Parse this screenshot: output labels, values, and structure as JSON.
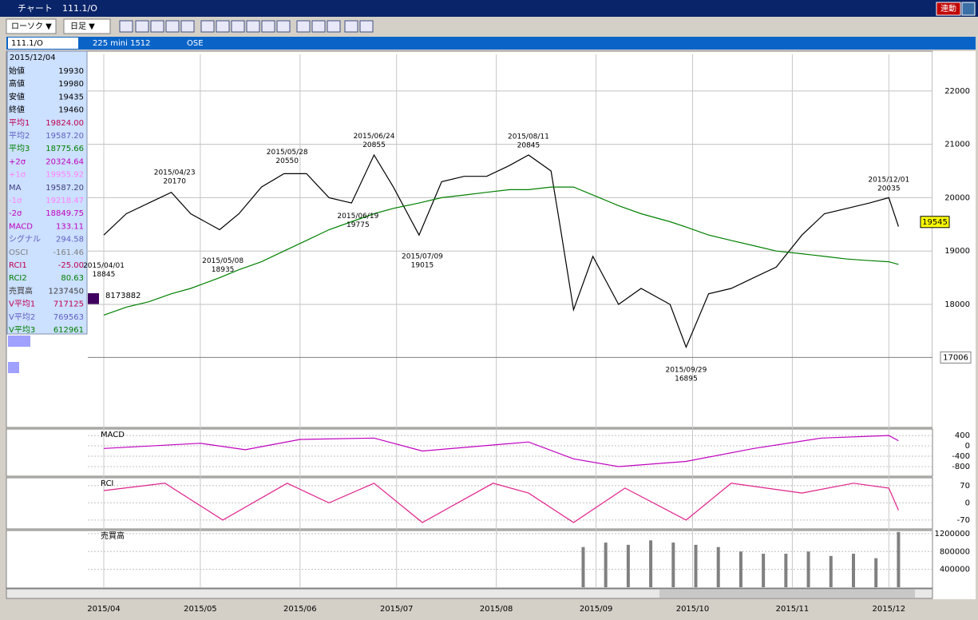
{
  "window": {
    "title": "チャート",
    "symbol": "111.1/O",
    "link_button": "連動"
  },
  "toolbar": {
    "chart_kind": "ローソク ▼",
    "period": "日足 ▼"
  },
  "info_bar": {
    "code": "111.1/O",
    "name": "225 mini 1512",
    "exchange": "OSE"
  },
  "info_panel": {
    "date": "2015/12/04",
    "rows": [
      {
        "label": "始値",
        "value": "19930",
        "color": "#000000"
      },
      {
        "label": "高値",
        "value": "19980",
        "color": "#000000"
      },
      {
        "label": "安値",
        "value": "19435",
        "color": "#000000"
      },
      {
        "label": "終値",
        "value": "19460",
        "color": "#000000"
      },
      {
        "label": "平均1",
        "value": "19824.00",
        "color": "#c00050"
      },
      {
        "label": "平均2",
        "value": "19587.20",
        "color": "#6060c0"
      },
      {
        "label": "平均3",
        "value": "18775.66",
        "color": "#008000"
      },
      {
        "label": "+2σ",
        "value": "20324.64",
        "color": "#c000c0"
      },
      {
        "label": "+1σ",
        "value": "19955.92",
        "color": "#ff80ff"
      },
      {
        "label": "MA",
        "value": "19587.20",
        "color": "#404080"
      },
      {
        "label": "-1σ",
        "value": "19218.47",
        "color": "#ff80ff"
      },
      {
        "label": "-2σ",
        "value": "18849.75",
        "color": "#c000c0"
      },
      {
        "label": "MACD",
        "value": "133.11",
        "color": "#c000c0"
      },
      {
        "label": "シグナル",
        "value": "294.58",
        "color": "#6060c0"
      },
      {
        "label": "OSCI",
        "value": "-161.46",
        "color": "#808080"
      },
      {
        "label": "RCI1",
        "value": "-25.00",
        "color": "#c00050"
      },
      {
        "label": "RCI2",
        "value": "80.63",
        "color": "#008000"
      },
      {
        "label": "売買高",
        "value": "1237450",
        "color": "#404040"
      },
      {
        "label": "V平均1",
        "value": "717125",
        "color": "#c00050"
      },
      {
        "label": "V平均2",
        "value": "769563",
        "color": "#6060c0"
      },
      {
        "label": "V平均3",
        "value": "612961",
        "color": "#008000"
      }
    ]
  },
  "chart_data": [
    {
      "type": "line",
      "ylim": [
        15695,
        22686
      ],
      "yticks": [
        18000,
        19000,
        20000,
        21000,
        22000
      ],
      "xticks": [
        "2015/04",
        "2015/05",
        "2015/06",
        "2015/07",
        "2015/08",
        "2015/09",
        "2015/10",
        "2015/11",
        "2015/12"
      ],
      "x": [
        "2015/04/01",
        "2015/04/08",
        "2015/04/15",
        "2015/04/22",
        "2015/04/28",
        "2015/05/07",
        "2015/05/13",
        "2015/05/20",
        "2015/05/27",
        "2015/06/03",
        "2015/06/10",
        "2015/06/17",
        "2015/06/24",
        "2015/06/30",
        "2015/07/08",
        "2015/07/15",
        "2015/07/22",
        "2015/07/29",
        "2015/08/05",
        "2015/08/11",
        "2015/08/18",
        "2015/08/21",
        "2015/08/25",
        "2015/08/31",
        "2015/09/08",
        "2015/09/15",
        "2015/09/24",
        "2015/09/29",
        "2015/10/06",
        "2015/10/13",
        "2015/10/20",
        "2015/10/27",
        "2015/11/04",
        "2015/11/11",
        "2015/11/18",
        "2015/11/25",
        "2015/12/01",
        "2015/12/04"
      ],
      "series": [
        {
          "name": "終値",
          "color": "#000000",
          "values": [
            19300,
            19700,
            19900,
            20100,
            19700,
            19400,
            19700,
            20200,
            20450,
            20450,
            20000,
            19900,
            20800,
            20200,
            19300,
            20300,
            20400,
            20400,
            20600,
            20800,
            20500,
            19400,
            17900,
            18900,
            18000,
            18300,
            18000,
            17200,
            18200,
            18300,
            18500,
            18700,
            19300,
            19700,
            19800,
            19900,
            20000,
            19460
          ]
        },
        {
          "name": "平均3",
          "color": "#008000",
          "values": [
            17800,
            17950,
            18050,
            18200,
            18300,
            18500,
            18650,
            18800,
            19000,
            19200,
            19400,
            19550,
            19700,
            19800,
            19900,
            20000,
            20050,
            20100,
            20150,
            20150,
            20200,
            20200,
            20200,
            20050,
            19850,
            19700,
            19550,
            19450,
            19300,
            19200,
            19100,
            19000,
            18950,
            18900,
            18850,
            18820,
            18800,
            18750
          ]
        }
      ],
      "highs": [
        {
          "date": "2015/04/23",
          "value": 20170
        },
        {
          "date": "2015/05/28",
          "value": 20550
        },
        {
          "date": "2015/06/24",
          "value": 20855
        },
        {
          "date": "2015/08/11",
          "value": 20845
        },
        {
          "date": "2015/12/01",
          "value": 20035
        }
      ],
      "lows": [
        {
          "date": "2015/04/01",
          "value": 18845
        },
        {
          "date": "2015/05/08",
          "value": 18935
        },
        {
          "date": "2015/06/19",
          "value": 19775
        },
        {
          "date": "2015/07/09",
          "value": 19015
        },
        {
          "date": "2015/09/29",
          "value": 16895
        }
      ],
      "price_tag": 19545,
      "level_tag": 17006,
      "volume_tag": 8173882
    },
    {
      "type": "line",
      "label": "MACD",
      "ylim": [
        -1140,
        650
      ],
      "yticks": [
        400,
        0,
        -400,
        -800
      ],
      "x": [
        "2015/04/01",
        "2015/05/01",
        "2015/05/15",
        "2015/06/01",
        "2015/06/24",
        "2015/07/09",
        "2015/08/11",
        "2015/08/25",
        "2015/09/08",
        "2015/09/29",
        "2015/10/20",
        "2015/11/10",
        "2015/12/01",
        "2015/12/04"
      ],
      "series": [
        {
          "name": "MACD",
          "color": "#c000c0",
          "values": [
            -100,
            100,
            -150,
            250,
            300,
            -200,
            150,
            -500,
            -800,
            -600,
            -100,
            300,
            400,
            200
          ]
        }
      ]
    },
    {
      "type": "line",
      "label": "RCI",
      "ylim": [
        -106,
        102
      ],
      "yticks": [
        70,
        0,
        -70
      ],
      "x": [
        "2015/04/01",
        "2015/04/20",
        "2015/05/08",
        "2015/05/28",
        "2015/06/10",
        "2015/06/24",
        "2015/07/09",
        "2015/07/31",
        "2015/08/11",
        "2015/08/25",
        "2015/09/10",
        "2015/09/29",
        "2015/10/13",
        "2015/11/04",
        "2015/11/20",
        "2015/12/01",
        "2015/12/04"
      ],
      "series": [
        {
          "name": "RCI1",
          "color": "#e0208a",
          "values": [
            50,
            80,
            -70,
            80,
            0,
            80,
            -80,
            80,
            40,
            -80,
            60,
            -70,
            80,
            40,
            80,
            60,
            -30
          ]
        }
      ]
    },
    {
      "type": "bar",
      "label": "売買高",
      "ylim": [
        0,
        1270000
      ],
      "yticks": [
        1200000,
        800000,
        400000
      ],
      "x": [
        "2015/08/28",
        "2015/09/04",
        "2015/09/11",
        "2015/09/18",
        "2015/09/25",
        "2015/10/02",
        "2015/10/09",
        "2015/10/16",
        "2015/10/23",
        "2015/10/30",
        "2015/11/06",
        "2015/11/13",
        "2015/11/20",
        "2015/11/27",
        "2015/12/04"
      ],
      "values": [
        900000,
        1000000,
        950000,
        1050000,
        1000000,
        950000,
        900000,
        800000,
        750000,
        750000,
        800000,
        700000,
        750000,
        650000,
        1237450
      ],
      "color": "#808080"
    }
  ]
}
